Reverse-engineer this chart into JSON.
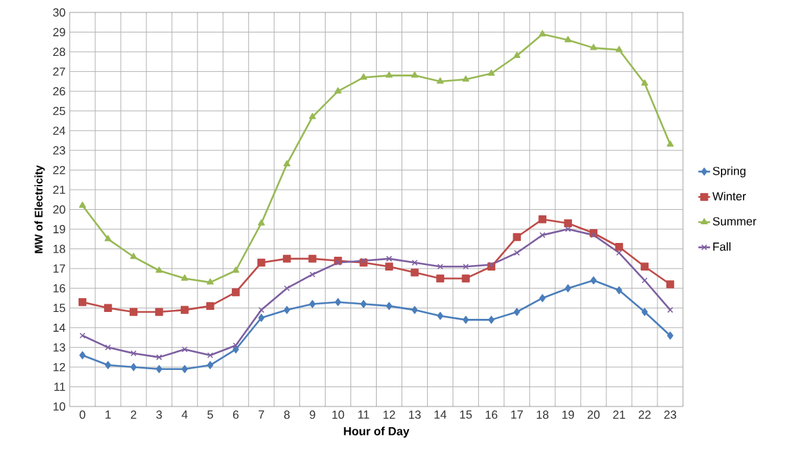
{
  "chart_data": {
    "type": "line",
    "xlabel": "Hour of Day",
    "ylabel": "MW of Electricity",
    "categories": [
      "0",
      "1",
      "2",
      "3",
      "4",
      "5",
      "6",
      "7",
      "8",
      "9",
      "10",
      "11",
      "12",
      "13",
      "14",
      "15",
      "16",
      "17",
      "18",
      "19",
      "20",
      "21",
      "22",
      "23"
    ],
    "ylim": [
      10,
      30
    ],
    "yticks": [
      10,
      11,
      12,
      13,
      14,
      15,
      16,
      17,
      18,
      19,
      20,
      21,
      22,
      23,
      24,
      25,
      26,
      27,
      28,
      29,
      30
    ],
    "grid": true,
    "legend": "right",
    "line_style": "solid",
    "series": [
      {
        "name": "Spring",
        "color": "#4a7ebb",
        "marker": "diamond",
        "values": [
          12.6,
          12.1,
          12.0,
          11.9,
          11.9,
          12.1,
          12.9,
          14.5,
          14.9,
          15.2,
          15.3,
          15.2,
          15.1,
          14.9,
          14.6,
          14.4,
          14.4,
          14.8,
          15.5,
          16.0,
          16.4,
          15.9,
          14.8,
          13.6
        ]
      },
      {
        "name": "Winter",
        "color": "#be4b48",
        "marker": "square",
        "values": [
          15.3,
          15.0,
          14.8,
          14.8,
          14.9,
          15.1,
          15.8,
          17.3,
          17.5,
          17.5,
          17.4,
          17.3,
          17.1,
          16.8,
          16.5,
          16.5,
          17.1,
          18.6,
          19.5,
          19.3,
          18.8,
          18.1,
          17.1,
          16.2
        ]
      },
      {
        "name": "Summer",
        "color": "#98b954",
        "marker": "triangle",
        "values": [
          20.2,
          18.5,
          17.6,
          16.9,
          16.5,
          16.3,
          16.9,
          19.3,
          22.3,
          24.7,
          26.0,
          26.7,
          26.8,
          26.8,
          26.5,
          26.6,
          26.9,
          27.8,
          28.9,
          28.6,
          28.2,
          28.1,
          26.4,
          23.3
        ]
      },
      {
        "name": "Fall",
        "color": "#7d5fa0",
        "marker": "cross",
        "values": [
          13.6,
          13.0,
          12.7,
          12.5,
          12.9,
          12.6,
          13.1,
          14.9,
          16.0,
          16.7,
          17.3,
          17.4,
          17.5,
          17.3,
          17.1,
          17.1,
          17.2,
          17.8,
          18.7,
          19.0,
          18.7,
          17.8,
          16.4,
          14.9
        ]
      }
    ]
  }
}
